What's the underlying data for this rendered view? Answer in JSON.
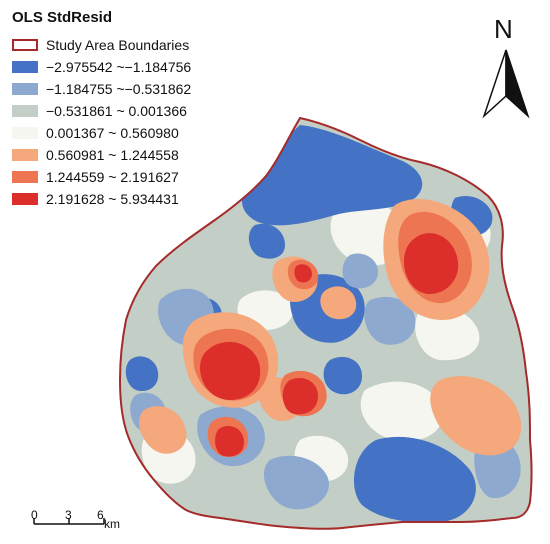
{
  "legend": {
    "title": "OLS StdResid",
    "boundary_label": "Study Area Boundaries",
    "boundary_color": "#a52a2a",
    "classes": [
      {
        "label": "−2.975542 ~−1.184756",
        "color": "#4472c4"
      },
      {
        "label": "−1.184755 ~−0.531862",
        "color": "#8ea9cf"
      },
      {
        "label": "−0.531861 ~ 0.001366",
        "color": "#c3cec6"
      },
      {
        "label": "0.001367 ~ 0.560980",
        "color": "#f6f6f1"
      },
      {
        "label": "0.560981 ~ 1.244558",
        "color": "#f4a87c"
      },
      {
        "label": "1.244559 ~ 2.191627",
        "color": "#ee7552"
      },
      {
        "label": "2.191628 ~ 5.934431",
        "color": "#dc2e2a"
      }
    ]
  },
  "north_arrow": {
    "letter": "N",
    "icon": "north-arrow-icon"
  },
  "scale_bar": {
    "ticks": [
      "0",
      "3",
      "6"
    ],
    "unit": "km"
  }
}
